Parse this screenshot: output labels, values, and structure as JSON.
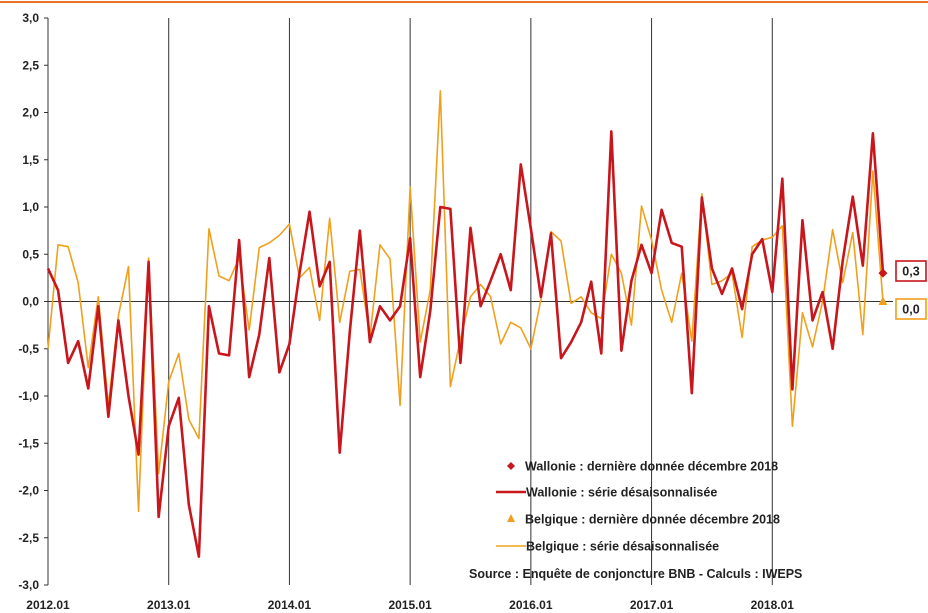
{
  "chart_data": {
    "type": "line",
    "ylim": [
      -3.0,
      3.0
    ],
    "y_ticks": [
      "3,0",
      "2,5",
      "2,0",
      "1,5",
      "1,0",
      "0,5",
      "0,0",
      "-0,5",
      "-1,0",
      "-1,5",
      "-2,0",
      "-2,5",
      "-3,0"
    ],
    "y_tick_values": [
      3.0,
      2.5,
      2.0,
      1.5,
      1.0,
      0.5,
      0.0,
      -0.5,
      -1.0,
      -1.5,
      -2.0,
      -2.5,
      -3.0
    ],
    "x_ticks": [
      "2012.01",
      "2013.01",
      "2014.01",
      "2015.01",
      "2016.01",
      "2017.01",
      "2018.01"
    ],
    "x_range_months": 84,
    "grid": "vertical lines at each January",
    "legend_position": "bottom-right",
    "series": [
      {
        "name": "Wallonie : série désaisonnalisée",
        "color": "#c8161d",
        "values": [
          0.35,
          0.12,
          -0.65,
          -0.42,
          -0.92,
          -0.05,
          -1.22,
          -0.2,
          -1.0,
          -1.62,
          0.42,
          -2.28,
          -1.32,
          -1.02,
          -2.15,
          -2.7,
          -0.05,
          -0.55,
          -0.57,
          0.65,
          -0.8,
          -0.35,
          0.46,
          -0.75,
          -0.45,
          0.3,
          0.95,
          0.16,
          0.42,
          -1.6,
          -0.32,
          0.75,
          -0.43,
          -0.05,
          -0.2,
          -0.05,
          0.67,
          -0.8,
          -0.1,
          1.0,
          0.98,
          -0.65,
          0.78,
          -0.05,
          0.22,
          0.5,
          0.12,
          1.45,
          0.77,
          0.05,
          0.72,
          -0.6,
          -0.43,
          -0.22,
          0.21,
          -0.55,
          1.8,
          -0.52,
          0.22,
          0.6,
          0.3,
          0.97,
          0.62,
          0.58,
          -0.97,
          1.1,
          0.35,
          0.08,
          0.35,
          -0.08,
          0.5,
          0.66,
          0.1,
          1.3,
          -0.93,
          0.86,
          -0.2,
          0.1,
          -0.5,
          0.43,
          1.11,
          0.38,
          1.78,
          0.31
        ]
      },
      {
        "name": "Belgique : série désaisonnalisée",
        "color": "#f0a01c",
        "values": [
          -0.5,
          0.6,
          0.58,
          0.2,
          -0.7,
          0.05,
          -1.1,
          -0.15,
          0.37,
          -2.22,
          0.46,
          -1.82,
          -0.85,
          -0.55,
          -1.25,
          -1.45,
          0.77,
          0.27,
          0.22,
          0.46,
          -0.3,
          0.57,
          0.62,
          0.7,
          0.82,
          0.25,
          0.36,
          -0.2,
          0.88,
          -0.22,
          0.32,
          0.34,
          -0.38,
          0.6,
          0.45,
          -1.1,
          1.21,
          -0.43,
          0.12,
          2.23,
          -0.9,
          -0.4,
          0.05,
          0.18,
          0.05,
          -0.45,
          -0.22,
          -0.28,
          -0.5,
          0.02,
          0.74,
          0.64,
          -0.02,
          0.05,
          -0.12,
          -0.18,
          0.5,
          0.3,
          -0.25,
          1.01,
          0.65,
          0.12,
          -0.22,
          0.3,
          -0.42,
          1.14,
          0.18,
          0.22,
          0.3,
          -0.38,
          0.58,
          0.65,
          0.68,
          0.8,
          -1.32,
          -0.12,
          -0.48,
          0.0,
          0.76,
          0.2,
          0.73,
          -0.35,
          1.38,
          0.0
        ]
      }
    ],
    "last_points": [
      {
        "name": "Wallonie : dernière donnée décembre 2018",
        "value": 0.3,
        "label": "0,3",
        "marker": "diamond",
        "color": "#c8161d"
      },
      {
        "name": "Belgique : dernière donnée décembre 2018",
        "value": 0.0,
        "label": "0,0",
        "marker": "triangle",
        "color": "#f0a01c"
      }
    ],
    "legend": [
      {
        "label": "Wallonie : dernière donnée décembre 2018",
        "kind": "diamond",
        "color": "#c8161d"
      },
      {
        "label": "Wallonie : série désaisonnalisée",
        "kind": "line-thick",
        "color": "#c8161d"
      },
      {
        "label": "Belgique : dernière donnée décembre 2018",
        "kind": "triangle",
        "color": "#f0a01c"
      },
      {
        "label": "Belgique : série désaisonnalisée",
        "kind": "line-thin",
        "color": "#f0a01c"
      }
    ],
    "source": "Source : Enquête de conjoncture BNB - Calculs : IWEPS",
    "top_border_color": "#e8732a"
  }
}
